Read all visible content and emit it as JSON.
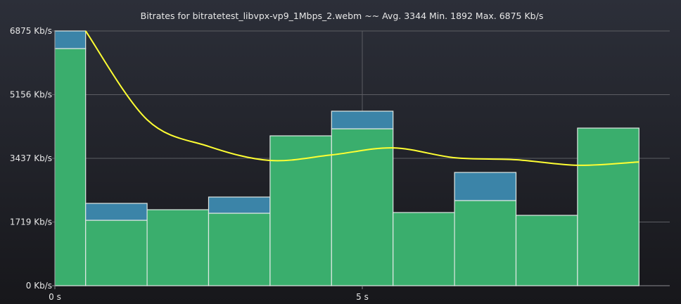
{
  "chart_data": {
    "type": "bar",
    "stacked": true,
    "title": "Bitrates for bitratetest_libvpx-vp9_1Mbps_2.webm ~~ Avg. 3344 Min. 1892 Max. 6875 Kb/s",
    "xlabel": "",
    "ylabel": "",
    "xlim": [
      0,
      10
    ],
    "ylim": [
      0,
      6875
    ],
    "x_ticks": [
      {
        "value": 0,
        "label": "0 s"
      },
      {
        "value": 5,
        "label": "5 s"
      }
    ],
    "y_ticks": [
      {
        "value": 0,
        "label": "0 Kb/s"
      },
      {
        "value": 1719,
        "label": "1719 Kb/s"
      },
      {
        "value": 3437,
        "label": "3437 Kb/s"
      },
      {
        "value": 5156,
        "label": "5156 Kb/s"
      },
      {
        "value": 6875,
        "label": "6875 Kb/s"
      }
    ],
    "grid": true,
    "bins": [
      [
        0,
        0.5
      ],
      [
        0.5,
        1.5
      ],
      [
        1.5,
        2.5
      ],
      [
        2.5,
        3.5
      ],
      [
        3.5,
        4.5
      ],
      [
        4.5,
        5.5
      ],
      [
        5.5,
        6.5
      ],
      [
        6.5,
        7.5
      ],
      [
        7.5,
        8.5
      ],
      [
        8.5,
        9.5
      ]
    ],
    "series": [
      {
        "name": "green",
        "color": "#3aae6d",
        "values": [
          6400,
          1766,
          2051,
          1956,
          4045,
          4235,
          1975,
          2298,
          1899,
          4254
        ]
      },
      {
        "name": "blue",
        "color": "#3b84a8",
        "values": [
          475,
          456,
          0,
          437,
          0,
          475,
          0,
          759,
          0,
          0
        ]
      }
    ],
    "line": {
      "name": "average",
      "color": "#ffff33",
      "x": [
        0.5,
        1.5,
        2.5,
        3.5,
        4.5,
        5.5,
        6.5,
        7.5,
        8.5,
        9.5
      ],
      "y": [
        6875,
        4480,
        3760,
        3380,
        3530,
        3720,
        3455,
        3400,
        3250,
        3340
      ]
    }
  }
}
